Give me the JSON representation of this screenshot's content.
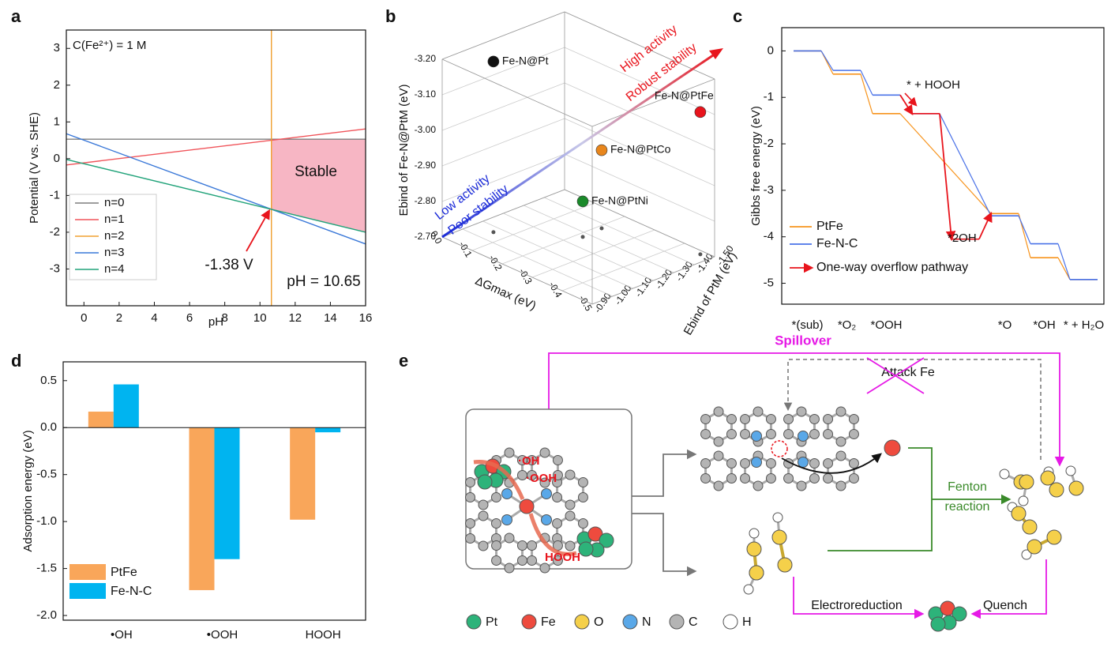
{
  "panel_labels": [
    "a",
    "b",
    "c",
    "d",
    "e"
  ],
  "chart_data": [
    {
      "type": "line",
      "xlabel": "pH",
      "ylabel": "Potential (V vs. SHE)",
      "xlim": [
        -1,
        16
      ],
      "ylim": [
        -4,
        3.5
      ],
      "xticks": [
        0,
        2,
        4,
        6,
        8,
        10,
        12,
        14,
        16
      ],
      "yticks": [
        -3,
        -2,
        -1,
        0,
        1,
        2,
        3
      ],
      "series": [
        {
          "name": "n=0",
          "color": "#7f7f7f",
          "x": [
            -1,
            16
          ],
          "values": [
            0.53,
            0.53
          ]
        },
        {
          "name": "n=1",
          "color": "#f0545a",
          "x": [
            -1,
            16
          ],
          "values": [
            -0.17,
            0.81
          ]
        },
        {
          "name": "n=2",
          "color": "#f0a030",
          "x": [
            10.65,
            10.65
          ],
          "values": [
            -4,
            3.5
          ]
        },
        {
          "name": "n=3",
          "color": "#3a78d8",
          "x": [
            -1,
            16
          ],
          "values": [
            0.68,
            -2.32
          ]
        },
        {
          "name": "n=4",
          "color": "#22a37a",
          "x": [
            -1,
            16
          ],
          "values": [
            -0.02,
            -2.0
          ]
        }
      ],
      "region": {
        "label": "Stable",
        "color": "#f7b6c4"
      },
      "annotations": [
        "C(Fe²⁺) = 1 M",
        "-1.38 V",
        "pH = 10.65"
      ],
      "legend": "lower left"
    },
    {
      "type": "scatter3d",
      "xlabel": "ΔGmax (eV)",
      "ylabel": "Ebind of PtM (eV)",
      "zlabel": "Ebind of Fe-N@PtM (eV)",
      "xlim": [
        0,
        -0.5
      ],
      "ylim": [
        -0.9,
        -1.5
      ],
      "zlim": [
        -2.7,
        -3.2
      ],
      "xticks": [
        {
          "value": 0,
          "label": "0.0"
        },
        -0.1,
        -0.2,
        -0.3,
        -0.4,
        -0.5
      ],
      "yticks": [
        {
          "value": -0.9,
          "label": "-0.90"
        },
        {
          "value": -1.0,
          "label": "-1.00"
        },
        {
          "value": -1.1,
          "label": "-1.10"
        },
        {
          "value": -1.2,
          "label": "-1.20"
        },
        {
          "value": -1.3,
          "label": "-1.30"
        },
        {
          "value": -1.4,
          "label": "-1.40"
        },
        {
          "value": -1.5,
          "label": "-1.50"
        }
      ],
      "zticks": [
        {
          "value": -2.7,
          "label": "-2.70"
        },
        {
          "value": -2.8,
          "label": "-2.80"
        },
        {
          "value": -2.9,
          "label": "-2.90"
        },
        {
          "value": -3.0,
          "label": "-3.00"
        },
        {
          "value": -3.1,
          "label": "-3.10"
        },
        {
          "value": -3.2,
          "label": "-3.20"
        }
      ],
      "labels": [
        "Fe-N@Pt",
        "Fe-N@PtFe",
        "Fe-N@PtCo",
        "Fe-N@PtNi"
      ],
      "colors": [
        "#111111",
        "#e8141c",
        "#e8861c",
        "#1a8a2a"
      ],
      "x": [
        -0.06,
        -0.468,
        -0.212,
        -0.217
      ],
      "y": [
        -1.063,
        -1.477,
        -1.37,
        -1.27
      ],
      "z": [
        -3.18,
        -3.1,
        -2.92,
        -2.8
      ],
      "annotations": [
        "High activity",
        "Robust stability",
        "Low activity",
        "Poor stability"
      ]
    },
    {
      "type": "step",
      "ylabel": "Gibbs free energy (eV)",
      "categories": [
        "*(sub)",
        "*O₂",
        "*OOH",
        null,
        null,
        "*O",
        "*OH",
        "* + H₂O"
      ],
      "ylim": [
        -5.45,
        0.5
      ],
      "yticks": [
        0,
        -1,
        -2,
        -3,
        -4,
        -5
      ],
      "series": [
        {
          "name": "PtFe",
          "color": "#f7941d",
          "values": [
            0,
            -0.5,
            -1.35,
            null,
            null,
            -3.5,
            -4.45,
            -4.92
          ]
        },
        {
          "name": "Fe-N-C",
          "color": "#4a72e8",
          "values": [
            0,
            -0.42,
            -0.95,
            -1.35,
            null,
            -3.55,
            -4.15,
            -4.92
          ]
        },
        {
          "name": "One-way overflow pathway",
          "color": "#e8141c",
          "values": [
            null,
            null,
            -0.95,
            -1.35,
            -4.05,
            -3.5,
            null,
            null
          ]
        }
      ],
      "annotations": [
        "* + HOOH",
        "*2OH"
      ]
    },
    {
      "type": "bar",
      "ylabel": "Adsorption energy (eV)",
      "categories": [
        "•OH",
        "•OOH",
        "HOOH"
      ],
      "ylim": [
        -2.05,
        0.7
      ],
      "yticks": [
        0.5,
        {
          "value": 0,
          "label": "0.0"
        },
        -0.5,
        {
          "value": -1,
          "label": "-1.0"
        },
        -1.5,
        {
          "value": -2,
          "label": "-2.0"
        }
      ],
      "series": [
        {
          "name": "PtFe",
          "color": "#f9a65a",
          "values": [
            0.17,
            -1.73,
            -0.98
          ]
        },
        {
          "name": "Fe-N-C",
          "color": "#00b4f0",
          "values": [
            0.46,
            -1.4,
            -0.05
          ]
        }
      ],
      "legend": "lower left"
    }
  ],
  "diagram": {
    "spillover": "Spillover",
    "attack": "Attack Fe",
    "fenton": [
      "Fenton",
      "reaction"
    ],
    "electroreduction": "Electroreduction",
    "quench": "Quench",
    "species": [
      "·OH",
      "·OOH",
      "HOOH"
    ],
    "elements": [
      {
        "name": "Pt",
        "color": "#2db37a"
      },
      {
        "name": "Fe",
        "color": "#ee4b3e"
      },
      {
        "name": "O",
        "color": "#f5d04a"
      },
      {
        "name": "N",
        "color": "#5aa8e8"
      },
      {
        "name": "C",
        "color": "#b4b4b4"
      },
      {
        "name": "H",
        "color": "#ffffff"
      }
    ]
  }
}
